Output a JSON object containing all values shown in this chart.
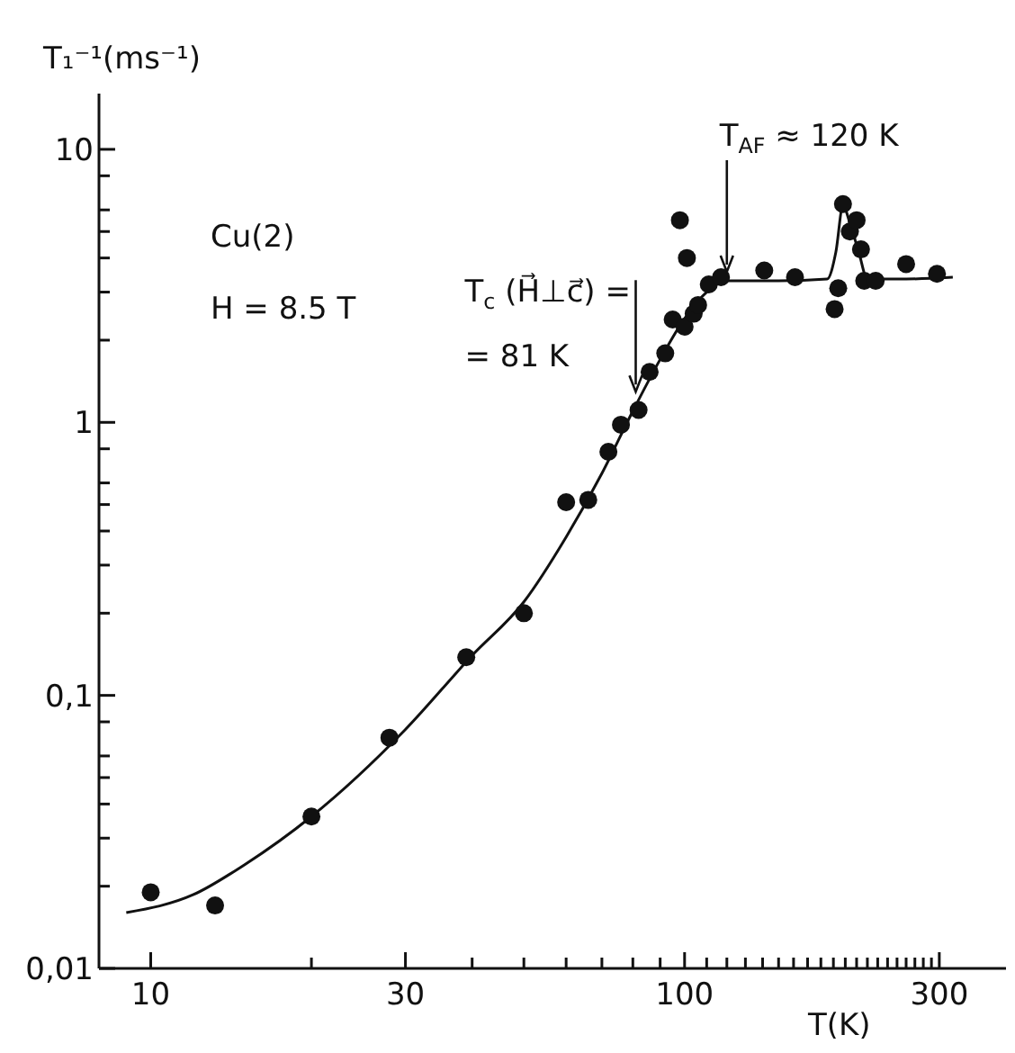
{
  "chart_data": {
    "type": "scatter",
    "xlabel": "T(K)",
    "ylabel": "T₁⁻¹(ms⁻¹)",
    "log": "xy",
    "xlim": [
      8,
      400
    ],
    "ylim": [
      0.01,
      16
    ],
    "xticks": [
      10,
      {
        "value": 20,
        "label": null
      },
      30,
      {
        "value": 40,
        "label": null
      },
      {
        "value": 50,
        "label": null
      },
      {
        "value": 60,
        "label": null
      },
      {
        "value": 70,
        "label": null
      },
      {
        "value": 80,
        "label": null
      },
      {
        "value": 90,
        "label": null
      },
      100,
      {
        "value": 110,
        "label": null
      },
      {
        "value": 120,
        "label": null
      },
      {
        "value": 130,
        "label": null
      },
      {
        "value": 140,
        "label": null
      },
      {
        "value": 150,
        "label": null
      },
      {
        "value": 160,
        "label": null
      },
      {
        "value": 170,
        "label": null
      },
      {
        "value": 180,
        "label": null
      },
      {
        "value": 190,
        "label": null
      },
      {
        "value": 200,
        "label": null
      },
      {
        "value": 210,
        "label": null
      },
      {
        "value": 220,
        "label": null
      },
      {
        "value": 230,
        "label": null
      },
      {
        "value": 240,
        "label": null
      },
      {
        "value": 250,
        "label": null
      },
      {
        "value": 260,
        "label": null
      },
      {
        "value": 270,
        "label": null
      },
      {
        "value": 280,
        "label": null
      },
      {
        "value": 290,
        "label": null
      },
      300
    ],
    "yticks": [
      {
        "value": 0.01,
        "label": "0,01"
      },
      {
        "value": 0.02,
        "label": null
      },
      {
        "value": 0.03,
        "label": null
      },
      {
        "value": 0.04,
        "label": null
      },
      {
        "value": 0.05,
        "label": null
      },
      {
        "value": 0.06,
        "label": null
      },
      {
        "value": 0.08,
        "label": null
      },
      {
        "value": 0.1,
        "label": "0,1"
      },
      {
        "value": 0.2,
        "label": null
      },
      {
        "value": 0.3,
        "label": null
      },
      {
        "value": 0.4,
        "label": null
      },
      {
        "value": 0.5,
        "label": null
      },
      {
        "value": 0.6,
        "label": null
      },
      {
        "value": 0.8,
        "label": null
      },
      1,
      {
        "value": 2,
        "label": null
      },
      {
        "value": 3,
        "label": null
      },
      {
        "value": 4,
        "label": null
      },
      {
        "value": 5,
        "label": null
      },
      {
        "value": 6,
        "label": null
      },
      {
        "value": 8,
        "label": null
      },
      10
    ],
    "annotations": [
      "Cu(2)",
      "H = 8.5 T",
      {
        "text": "T$_{c}$ (H⃗⊥c⃗) =\n= 81 K",
        "x": 81,
        "y": 1.2
      },
      {
        "text": "T$_{AF}$ ≈ 120 K",
        "x": 120,
        "y": 3.3
      }
    ],
    "series": [
      {
        "marker": "circle",
        "color": "#111111",
        "x": [
          10,
          13.2,
          20,
          28,
          39,
          50,
          60,
          66,
          72,
          76,
          82,
          86,
          92,
          95,
          98,
          101,
          100,
          104,
          106,
          111,
          117,
          141,
          161,
          191,
          194,
          198,
          204,
          210,
          214,
          217,
          228,
          260,
          297
        ],
        "values": [
          0.019,
          0.017,
          0.036,
          0.07,
          0.138,
          0.2,
          0.51,
          0.52,
          0.78,
          0.98,
          1.11,
          1.53,
          1.79,
          2.38,
          5.5,
          4.0,
          2.24,
          2.5,
          2.69,
          3.2,
          3.4,
          3.6,
          3.4,
          2.6,
          3.1,
          6.3,
          5.0,
          5.5,
          4.3,
          3.3,
          3.3,
          3.8,
          3.5
        ]
      },
      {
        "type": "line",
        "marker": "none",
        "color": "#111111",
        "x": [
          9,
          12,
          15,
          20,
          30,
          40,
          50,
          60,
          70,
          80,
          90,
          100,
          110,
          120,
          150,
          185,
          192,
          198,
          205,
          212,
          220,
          260,
          318
        ],
        "values": [
          0.016,
          0.0186,
          0.024,
          0.036,
          0.075,
          0.14,
          0.22,
          0.38,
          0.65,
          1.1,
          1.7,
          2.4,
          3.0,
          3.3,
          3.3,
          3.35,
          4.2,
          6.2,
          5.2,
          4.2,
          3.35,
          3.35,
          3.4
        ]
      }
    ]
  }
}
